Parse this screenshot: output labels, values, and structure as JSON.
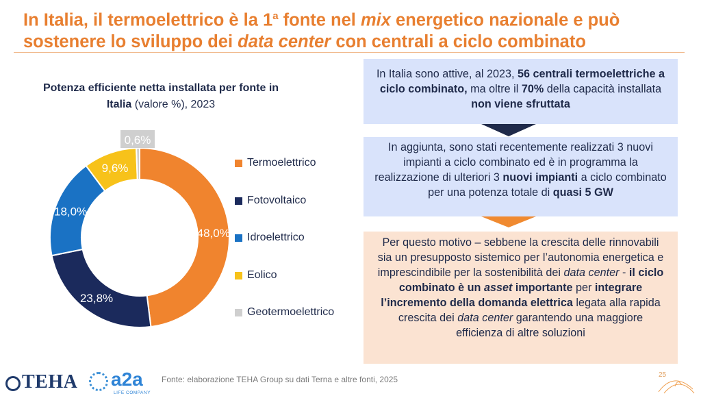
{
  "title": {
    "part1": "In Italia, il termoelettrico è la 1",
    "sup": "a",
    "part2": " fonte nel ",
    "mix": "mix",
    "part3": " energetico nazionale e può",
    "line2a": "sostenere lo sviluppo dei ",
    "data_center": "data center",
    "line2b": " con centrali a ciclo combinato"
  },
  "chart_title": {
    "bold1": "Potenza efficiente netta installata per fonte in",
    "bold2": "Italia",
    "rest": " (valore %), 2023"
  },
  "chart_data": {
    "type": "pie",
    "donut": true,
    "categories": [
      "Termoelettrico",
      "Fotovoltaico",
      "Idroelettrico",
      "Eolico",
      "Geotermoelettrico"
    ],
    "values": [
      48.0,
      23.8,
      18.0,
      9.6,
      0.6
    ],
    "labels": [
      "48,0%",
      "23,8%",
      "18,0%",
      "9,6%",
      "0,6%"
    ],
    "colors": [
      "#f0842e",
      "#1b2a5c",
      "#1a72c4",
      "#f7c21a",
      "#cfcfcf"
    ],
    "legend_position": "right"
  },
  "box1": {
    "t1": "In Italia sono attive, al 2023, ",
    "b1": "56 centrali termoelettriche a ciclo combinato,",
    "t2": " ma oltre il ",
    "b2": "70%",
    "t3": " della capacità installata ",
    "b3": "non viene sfruttata"
  },
  "box2": {
    "t1": "In aggiunta, sono stati recentemente realizzati 3 nuovi impianti a ciclo combinato ed è in programma la realizzazione di ulteriori 3 ",
    "b1": "nuovi impianti",
    "t2": " a ciclo combinato per una potenza totale di ",
    "b2": "quasi 5 GW"
  },
  "box3": {
    "t1": "Per questo motivo – sebbene la crescita delle rinnovabili sia un presupposto sistemico per l’autonomia energetica e imprescindibile per la sostenibilità dei ",
    "i1": "data center",
    "t2": " - ",
    "b1": "il ciclo combinato è un ",
    "bi1": "asset",
    "b2": " importante",
    "t3": " per ",
    "b3": "integrare l’incremento della domanda elettrica",
    "t4": " legata alla rapida crescita dei ",
    "i2": "data center",
    "t5": " garantendo una maggiore efficienza di altre soluzioni"
  },
  "footer": {
    "teha": "TEHA",
    "a2a": "a2a",
    "a2a_sub": "LIFE COMPANY",
    "source": "Fonte: elaborazione TEHA Group su dati Terna e altre fonti, 2025",
    "page": "25"
  }
}
